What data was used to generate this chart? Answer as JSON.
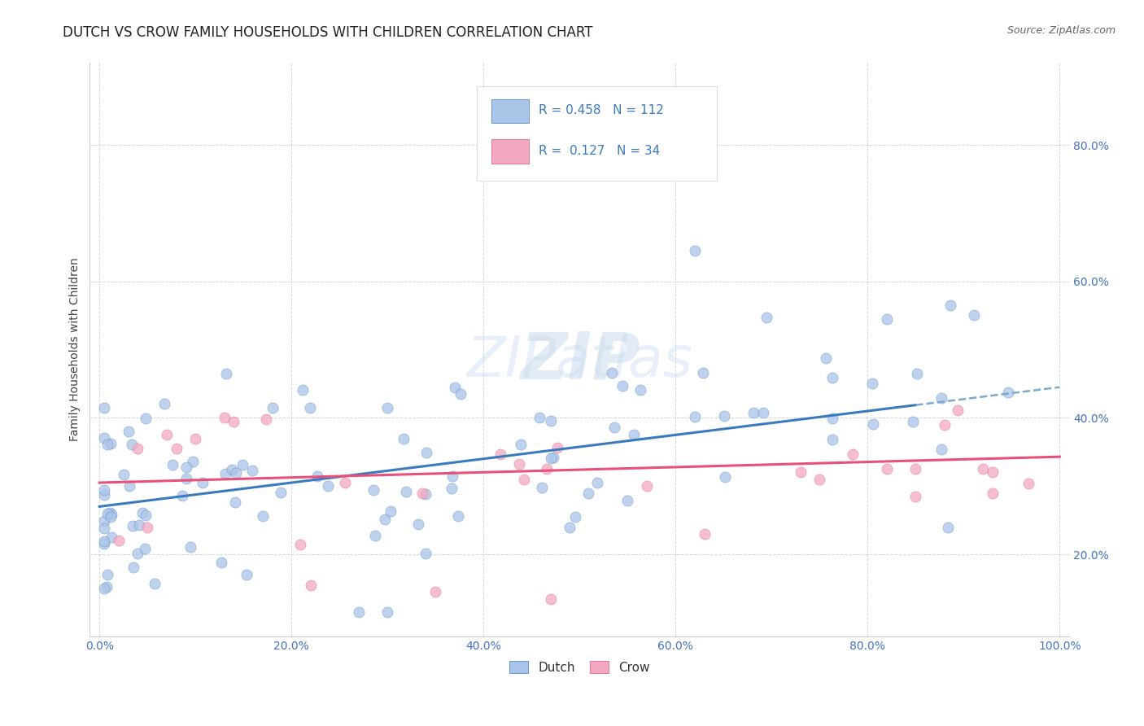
{
  "title": "DUTCH VS CROW FAMILY HOUSEHOLDS WITH CHILDREN CORRELATION CHART",
  "source": "Source: ZipAtlas.com",
  "ylabel": "Family Households with Children",
  "xlim": [
    -0.01,
    1.01
  ],
  "ylim": [
    0.08,
    0.92
  ],
  "xtick_labels": [
    "0.0%",
    "",
    "",
    "",
    "",
    "",
    "",
    "",
    "",
    "",
    "20.0%",
    "",
    "",
    "",
    "",
    "",
    "",
    "",
    "",
    "",
    "40.0%",
    "",
    "",
    "",
    "",
    "",
    "",
    "",
    "",
    "",
    "60.0%",
    "",
    "",
    "",
    "",
    "",
    "",
    "",
    "",
    "",
    "80.0%",
    "",
    "",
    "",
    "",
    "",
    "",
    "",
    "",
    "",
    "100.0%"
  ],
  "xtick_vals": [
    0.0,
    0.02,
    0.04,
    0.06,
    0.08,
    0.1,
    0.12,
    0.14,
    0.16,
    0.18,
    0.2,
    0.22,
    0.24,
    0.26,
    0.28,
    0.3,
    0.32,
    0.34,
    0.36,
    0.38,
    0.4,
    0.42,
    0.44,
    0.46,
    0.48,
    0.5,
    0.52,
    0.54,
    0.56,
    0.58,
    0.6,
    0.62,
    0.64,
    0.66,
    0.68,
    0.7,
    0.72,
    0.74,
    0.76,
    0.78,
    0.8,
    0.82,
    0.84,
    0.86,
    0.88,
    0.9,
    0.92,
    0.94,
    0.96,
    0.98,
    1.0
  ],
  "xtick_major_labels": [
    "0.0%",
    "20.0%",
    "40.0%",
    "60.0%",
    "80.0%",
    "100.0%"
  ],
  "xtick_major_vals": [
    0.0,
    0.2,
    0.4,
    0.6,
    0.8,
    1.0
  ],
  "ytick_labels": [
    "20.0%",
    "40.0%",
    "60.0%",
    "80.0%"
  ],
  "ytick_vals": [
    0.2,
    0.4,
    0.6,
    0.8
  ],
  "dutch_color": "#aac4e8",
  "dutch_line_color": "#3a7abf",
  "dutch_dash_color": "#7aaad0",
  "crow_color": "#f2a8be",
  "crow_line_color": "#e8507a",
  "dutch_R": 0.458,
  "dutch_N": 112,
  "crow_R": 0.127,
  "crow_N": 34,
  "background_color": "#ffffff",
  "grid_color": "#cccccc",
  "watermark_color": "#d0d8e8",
  "tick_color": "#4472c4",
  "title_color": "#222222",
  "title_fontsize": 12,
  "axis_label_fontsize": 10,
  "tick_fontsize": 10
}
